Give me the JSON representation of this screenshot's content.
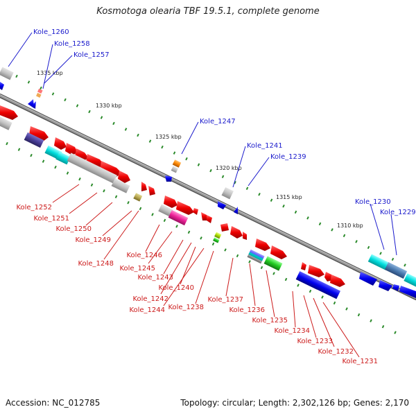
{
  "title": "Kosmotoga olearia TBF 19.5.1, complete genome",
  "footer": {
    "accession": "Accession: NC_012785",
    "summary": "Topology: circular; Length: 2,302,126 bp; Genes: 2,170"
  },
  "colors": {
    "backbone": "#7a7a7a",
    "forward_label": "#1a1acc",
    "reverse_label": "#cc1a1a",
    "tick": "#2a8a2a"
  },
  "scale_marks": [
    {
      "label": "1335 kbp"
    },
    {
      "label": "1330 kbp"
    },
    {
      "label": "1325 kbp"
    },
    {
      "label": "1320 kbp"
    },
    {
      "label": "1315 kbp"
    },
    {
      "label": "1310 kbp"
    }
  ],
  "forward_labels": [
    "Kole_1260",
    "Kole_1258",
    "Kole_1257",
    "Kole_1247",
    "Kole_1241",
    "Kole_1239",
    "Kole_1230",
    "Kole_1229"
  ],
  "reverse_labels": [
    "Kole_1252",
    "Kole_1251",
    "Kole_1250",
    "Kole_1249",
    "Kole_1246",
    "Kole_1248",
    "Kole_1245",
    "Kole_1243",
    "Kole_1240",
    "Kole_1242",
    "Kole_1244",
    "Kole_1238",
    "Kole_1237",
    "Kole_1236",
    "Kole_1235",
    "Kole_1234",
    "Kole_1233",
    "Kole_1232",
    "Kole_1231"
  ]
}
